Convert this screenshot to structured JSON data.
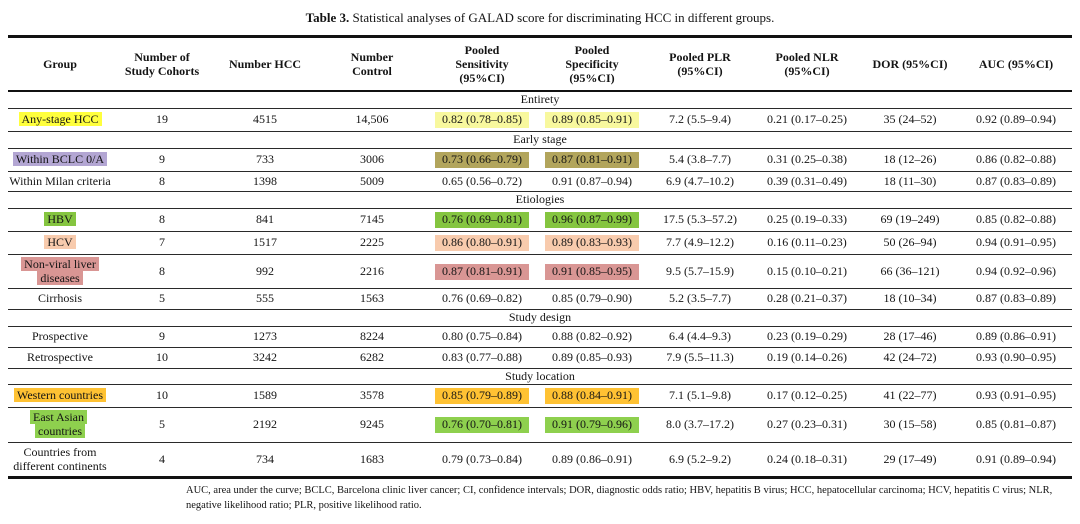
{
  "caption": {
    "label": "Table 3.",
    "text": " Statistical analyses of GALAD score for discriminating HCC in different groups."
  },
  "table": {
    "columns": [
      "Group",
      "Number of\nStudy Cohorts",
      "Number HCC",
      "Number\nControl",
      "Pooled\nSensitivity\n(95%CI)",
      "Pooled\nSpecificity\n(95%CI)",
      "Pooled PLR\n(95%CI)",
      "Pooled NLR\n(95%CI)",
      "DOR (95%CI)",
      "AUC (95%CI)"
    ],
    "sections": [
      {
        "title": "Entirety",
        "rows": [
          {
            "group": "Any-stage HCC",
            "label_color": "#ffff3d",
            "value_color": "#f8f89e",
            "values": [
              "19",
              "4515",
              "14,506",
              "0.82 (0.78–0.85)",
              "0.89 (0.85–0.91)",
              "7.2 (5.5–9.4)",
              "0.21 (0.17–0.25)",
              "35 (24–52)",
              "0.92 (0.89–0.94)"
            ]
          }
        ]
      },
      {
        "title": "Early stage",
        "rows": [
          {
            "group": "Within BCLC 0/A",
            "label_color": "#b3a6d3",
            "value_color": "#b2a55c",
            "values": [
              "9",
              "733",
              "3006",
              "0.73 (0.66–0.79)",
              "0.87 (0.81–0.91)",
              "5.4 (3.8–7.7)",
              "0.31 (0.25–0.38)",
              "18 (12–26)",
              "0.86 (0.82–0.88)"
            ]
          },
          {
            "group": "Within Milan criteria",
            "label_color": null,
            "value_color": null,
            "values": [
              "8",
              "1398",
              "5009",
              "0.65 (0.56–0.72)",
              "0.91 (0.87–0.94)",
              "6.9 (4.7–10.2)",
              "0.39 (0.31–0.49)",
              "18 (11–30)",
              "0.87 (0.83–0.89)"
            ]
          }
        ]
      },
      {
        "title": "Etiologies",
        "rows": [
          {
            "group": "HBV",
            "label_color": "#85c540",
            "value_color": "#85c540",
            "values": [
              "8",
              "841",
              "7145",
              "0.76 (0.69–0.81)",
              "0.96 (0.87–0.99)",
              "17.5 (5.3–57.2)",
              "0.25 (0.19–0.33)",
              "69 (19–249)",
              "0.85 (0.82–0.88)"
            ]
          },
          {
            "group": "HCV",
            "label_color": "#f8cbad",
            "value_color": "#f8cbad",
            "values": [
              "7",
              "1517",
              "2225",
              "0.86 (0.80–0.91)",
              "0.89 (0.83–0.93)",
              "7.7 (4.9–12.2)",
              "0.16 (0.11–0.23)",
              "50 (26–94)",
              "0.94 (0.91–0.95)"
            ]
          },
          {
            "group": "Non-viral liver diseases",
            "label_color": "#d99694",
            "value_color": "#d99694",
            "values": [
              "8",
              "992",
              "2216",
              "0.87 (0.81–0.91)",
              "0.91 (0.85–0.95)",
              "9.5 (5.7–15.9)",
              "0.15 (0.10–0.21)",
              "66 (36–121)",
              "0.94 (0.92–0.96)"
            ]
          },
          {
            "group": "Cirrhosis",
            "label_color": null,
            "value_color": null,
            "values": [
              "5",
              "555",
              "1563",
              "0.76 (0.69–0.82)",
              "0.85 (0.79–0.90)",
              "5.2 (3.5–7.7)",
              "0.28 (0.21–0.37)",
              "18 (10–34)",
              "0.87 (0.83–0.89)"
            ]
          }
        ]
      },
      {
        "title": "Study design",
        "rows": [
          {
            "group": "Prospective",
            "label_color": null,
            "value_color": null,
            "values": [
              "9",
              "1273",
              "8224",
              "0.80 (0.75–0.84)",
              "0.88 (0.82–0.92)",
              "6.4 (4.4–9.3)",
              "0.23 (0.19–0.29)",
              "28 (17–46)",
              "0.89 (0.86–0.91)"
            ]
          },
          {
            "group": "Retrospective",
            "label_color": null,
            "value_color": null,
            "values": [
              "10",
              "3242",
              "6282",
              "0.83 (0.77–0.88)",
              "0.89 (0.85–0.93)",
              "7.9 (5.5–11.3)",
              "0.19 (0.14–0.26)",
              "42 (24–72)",
              "0.93 (0.90–0.95)"
            ]
          }
        ]
      },
      {
        "title": "Study location",
        "rows": [
          {
            "group": "Western countries",
            "label_color": "#ffc233",
            "value_color": "#ffc233",
            "values": [
              "10",
              "1589",
              "3578",
              "0.85 (0.79–0.89)",
              "0.88 (0.84–0.91)",
              "7.1 (5.1–9.8)",
              "0.17 (0.12–0.25)",
              "41 (22–77)",
              "0.93 (0.91–0.95)"
            ]
          },
          {
            "group": "East Asian countries",
            "label_color": "#8ed04e",
            "value_color": "#8ed04e",
            "values": [
              "5",
              "2192",
              "9245",
              "0.76 (0.70–0.81)",
              "0.91 (0.79–0.96)",
              "8.0 (3.7–17.2)",
              "0.27 (0.23–0.31)",
              "30 (15–58)",
              "0.85 (0.81–0.87)"
            ]
          },
          {
            "group": "Countries from different continents",
            "label_color": null,
            "value_color": null,
            "values": [
              "4",
              "734",
              "1683",
              "0.79 (0.73–0.84)",
              "0.89 (0.86–0.91)",
              "6.9 (5.2–9.2)",
              "0.24 (0.18–0.31)",
              "29 (17–49)",
              "0.91 (0.89–0.94)"
            ]
          }
        ]
      }
    ]
  },
  "footnote": "AUC, area under the curve; BCLC, Barcelona clinic liver cancer; CI, confidence intervals; DOR, diagnostic odds ratio; HBV, hepatitis B virus; HCC, hepatocellular carcinoma; HCV, hepatitis C virus; NLR, negative likelihood ratio; PLR, positive likelihood ratio."
}
